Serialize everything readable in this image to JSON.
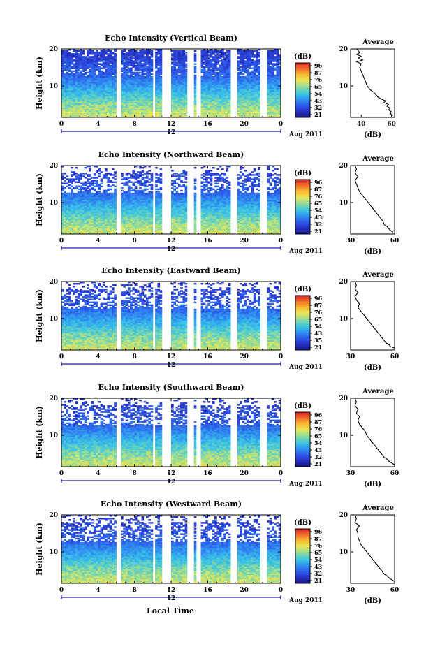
{
  "figure": {
    "x_axis_title": "Local Time",
    "date_label": "Aug 2011",
    "day_marker": "12"
  },
  "chart_data": [
    {
      "type": "heatmap",
      "title": "Echo Intensity (Vertical Beam)",
      "ylabel": "Height (km)",
      "x_ticks": [
        "0",
        "4",
        "8",
        "12",
        "16",
        "20",
        "0"
      ],
      "y_ticks": [
        "10",
        "20"
      ],
      "xlim": [
        0,
        24
      ],
      "ylim": [
        1.5,
        20
      ],
      "colorbar_label": "(dB)",
      "colorbar_ticks": [
        "96",
        "87",
        "76",
        "65",
        "54",
        "43",
        "32",
        "21"
      ],
      "profile": {
        "title": "Average",
        "xlabel": "(dB)",
        "x_ticks": [
          "40",
          "60"
        ],
        "y_ticks": [
          "10",
          "20"
        ],
        "xlim": [
          33,
          62
        ],
        "heights": [
          2,
          2.5,
          3,
          3.5,
          4,
          4.5,
          5,
          5.5,
          6,
          6.5,
          7,
          8,
          9,
          10,
          11,
          12,
          13,
          14,
          15,
          16,
          16.5,
          17,
          17.5,
          18,
          18.5,
          19,
          19.5,
          20
        ],
        "values": [
          61,
          59,
          60,
          58,
          59,
          57,
          58,
          55,
          56,
          53,
          51,
          49,
          46,
          44,
          43,
          42,
          41,
          40,
          39,
          40,
          37,
          41,
          38,
          40,
          37,
          39,
          38,
          37
        ]
      }
    },
    {
      "type": "heatmap",
      "title": "Echo Intensity (Northward Beam)",
      "ylabel": "Height (km)",
      "x_ticks": [
        "0",
        "4",
        "8",
        "12",
        "16",
        "20",
        "0"
      ],
      "y_ticks": [
        "10",
        "20"
      ],
      "xlim": [
        0,
        24
      ],
      "ylim": [
        1.5,
        20
      ],
      "colorbar_label": "(dB)",
      "colorbar_ticks": [
        "96",
        "87",
        "76",
        "65",
        "54",
        "43",
        "32",
        "21"
      ],
      "profile": {
        "title": "Average",
        "xlabel": "(dB)",
        "x_ticks": [
          "30",
          "60"
        ],
        "y_ticks": [
          "10",
          "20"
        ],
        "xlim": [
          30,
          60
        ],
        "heights": [
          2,
          2.5,
          3,
          3.5,
          4,
          5,
          6,
          7,
          8,
          9,
          10,
          11,
          12,
          13,
          14,
          15,
          16,
          17,
          18,
          19,
          20
        ],
        "values": [
          59,
          57,
          56,
          55,
          53,
          52,
          50,
          48,
          46,
          44,
          42,
          40,
          38,
          36,
          35,
          34,
          33,
          35,
          33,
          34,
          33
        ]
      }
    },
    {
      "type": "heatmap",
      "title": "Echo Intensity (Eastward Beam)",
      "ylabel": "Height (km)",
      "x_ticks": [
        "0",
        "4",
        "8",
        "12",
        "16",
        "20",
        "0"
      ],
      "y_ticks": [
        "10",
        "20"
      ],
      "xlim": [
        0,
        24
      ],
      "ylim": [
        1.5,
        20
      ],
      "colorbar_label": "(dB)",
      "colorbar_ticks": [
        "96",
        "87",
        "76",
        "65",
        "54",
        "43",
        "35",
        "21"
      ],
      "profile": {
        "title": "Average",
        "xlabel": "(dB)",
        "x_ticks": [
          "30",
          "60"
        ],
        "y_ticks": [
          "10",
          "20"
        ],
        "xlim": [
          30,
          60
        ],
        "heights": [
          2,
          2.5,
          3,
          3.5,
          4,
          5,
          6,
          7,
          8,
          9,
          10,
          11,
          12,
          13,
          14,
          15,
          16,
          17,
          18,
          19,
          20
        ],
        "values": [
          60,
          57,
          56,
          54,
          53,
          51,
          49,
          47,
          45,
          43,
          41,
          39,
          37,
          35,
          36,
          34,
          33,
          35,
          33,
          34,
          33
        ]
      }
    },
    {
      "type": "heatmap",
      "title": "Echo Intensity (Southward Beam)",
      "ylabel": "Height (km)",
      "x_ticks": [
        "0",
        "4",
        "8",
        "12",
        "16",
        "20",
        "0"
      ],
      "y_ticks": [
        "10",
        "20"
      ],
      "xlim": [
        0,
        24
      ],
      "ylim": [
        1.5,
        20
      ],
      "colorbar_label": "(dB)",
      "colorbar_ticks": [
        "96",
        "87",
        "76",
        "65",
        "54",
        "43",
        "32",
        "21"
      ],
      "profile": {
        "title": "Average",
        "xlabel": "(dB)",
        "x_ticks": [
          "30",
          "60"
        ],
        "y_ticks": [
          "10",
          "20"
        ],
        "xlim": [
          30,
          60
        ],
        "heights": [
          2,
          2.5,
          3,
          3.5,
          4,
          5,
          6,
          7,
          8,
          9,
          10,
          11,
          12,
          13,
          14,
          15,
          16,
          17,
          18,
          19,
          20
        ],
        "values": [
          60,
          58,
          56,
          55,
          53,
          51,
          49,
          47,
          45,
          43,
          41,
          40,
          38,
          36,
          35,
          36,
          34,
          35,
          33,
          34,
          33
        ]
      }
    },
    {
      "type": "heatmap",
      "title": "Echo Intensity (Westward Beam)",
      "ylabel": "Height (km)",
      "x_ticks": [
        "0",
        "4",
        "8",
        "12",
        "16",
        "20",
        "0"
      ],
      "y_ticks": [
        "10",
        "20"
      ],
      "xlim": [
        0,
        24
      ],
      "ylim": [
        1.5,
        20
      ],
      "colorbar_label": "(dB)",
      "colorbar_ticks": [
        "96",
        "87",
        "76",
        "65",
        "54",
        "43",
        "32",
        "21"
      ],
      "profile": {
        "title": "Average",
        "xlabel": "(dB)",
        "x_ticks": [
          "30",
          "60"
        ],
        "y_ticks": [
          "10",
          "20"
        ],
        "xlim": [
          30,
          60
        ],
        "heights": [
          2,
          2.5,
          3,
          3.5,
          4,
          5,
          6,
          7,
          8,
          9,
          10,
          11,
          12,
          13,
          14,
          15,
          16,
          17,
          18,
          19,
          20
        ],
        "values": [
          60,
          58,
          56,
          55,
          53,
          51,
          49,
          47,
          45,
          43,
          41,
          39,
          37,
          36,
          35,
          35,
          34,
          36,
          33,
          34,
          33
        ]
      }
    }
  ]
}
